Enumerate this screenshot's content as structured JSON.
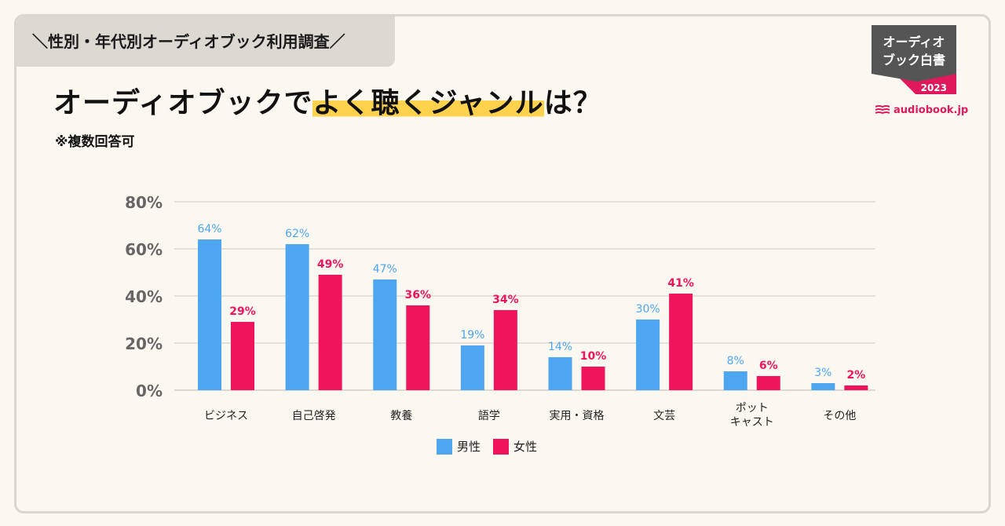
{
  "header": {
    "tag": "＼性別・年代別オーディオブック利用調査／",
    "title_pre": "オーディオブックで",
    "title_hl": "よく聴くジャンル",
    "title_post": "は？",
    "note": "※複数回答可"
  },
  "badge": {
    "line1": "オーディオ",
    "line2": "ブック白書",
    "year": "2023",
    "brand": "audiobook.jp"
  },
  "colors": {
    "male": "#4ea6f0",
    "female": "#f0145c",
    "grid": "#cfcac2",
    "badge_dark": "#555555",
    "badge_accent": "#e0185c"
  },
  "chart_data": {
    "type": "bar",
    "title": "オーディオブックでよく聴くジャンルは？",
    "xlabel": "",
    "ylabel": "",
    "ylim": [
      0,
      80
    ],
    "yticks": [
      0,
      20,
      40,
      60,
      80
    ],
    "ytick_labels": [
      "0%",
      "20%",
      "40%",
      "60%",
      "80%"
    ],
    "categories": [
      [
        "ビジネス"
      ],
      [
        "自己啓発"
      ],
      [
        "教養"
      ],
      [
        "語学"
      ],
      [
        "実用・資格"
      ],
      [
        "文芸"
      ],
      [
        "ポット",
        "キャスト"
      ],
      [
        "その他"
      ]
    ],
    "series": [
      {
        "name": "男性",
        "values": [
          64,
          62,
          47,
          19,
          14,
          30,
          8,
          3
        ],
        "labels": [
          "64%",
          "62%",
          "47%",
          "19%",
          "14%",
          "30%",
          "8%",
          "3%"
        ]
      },
      {
        "name": "女性",
        "values": [
          29,
          49,
          36,
          34,
          10,
          41,
          6,
          2
        ],
        "labels": [
          "29%",
          "49%",
          "36%",
          "34%",
          "10%",
          "41%",
          "6%",
          "2%"
        ]
      }
    ],
    "legend_position": "bottom-center"
  }
}
